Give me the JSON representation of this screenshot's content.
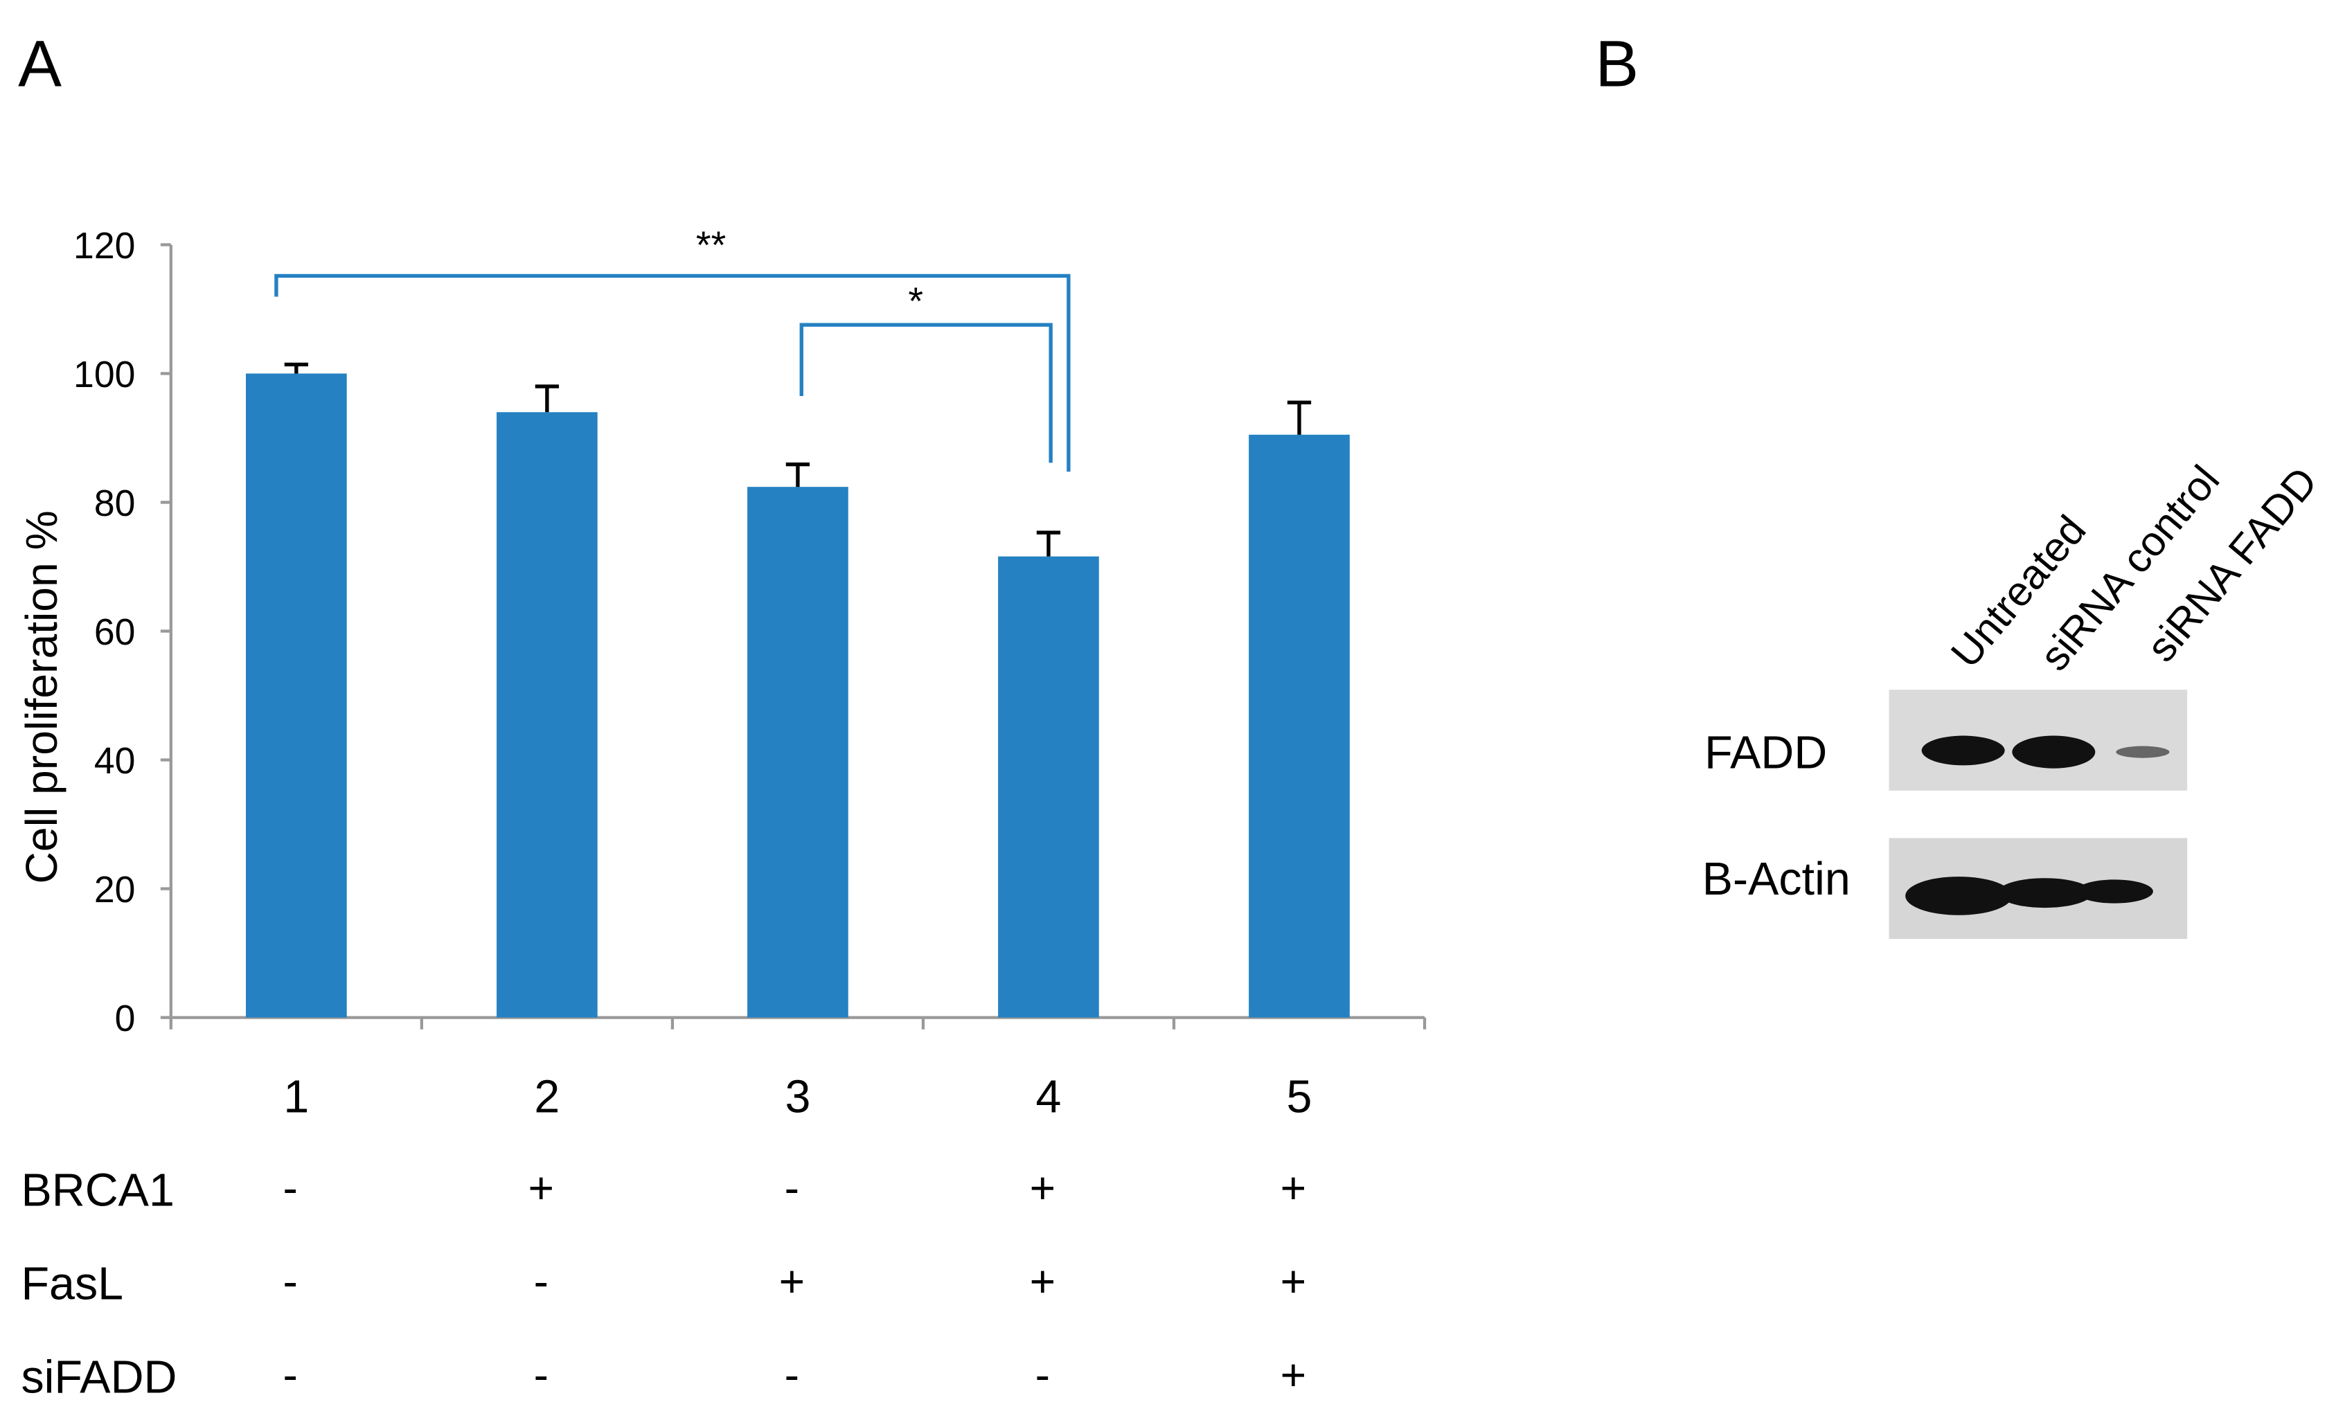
{
  "panels": [
    "A",
    "B"
  ],
  "chart_data": {
    "type": "bar",
    "ylabel": "Cell proliferation %",
    "categories": [
      "1",
      "2",
      "3",
      "4",
      "5"
    ],
    "values": [
      100,
      94,
      82.4,
      71.6,
      90.5
    ],
    "errors": [
      1.4,
      4,
      3.5,
      3.7,
      5
    ],
    "color": "#2581c2",
    "ylim": [
      0,
      120
    ],
    "yticks": [
      0,
      20,
      40,
      60,
      80,
      100,
      120
    ],
    "annotations": [
      "**",
      "*"
    ],
    "conditions": [
      {
        "name": "BRCA1",
        "values": [
          "-",
          "+",
          "-",
          "+",
          "+"
        ]
      },
      {
        "name": "FasL",
        "values": [
          "-",
          "-",
          "+",
          "+",
          "+"
        ]
      },
      {
        "name": "siFADD",
        "values": [
          "-",
          "-",
          "-",
          "-",
          "+"
        ]
      }
    ]
  },
  "blot": {
    "lanes": [
      "Untreated",
      "siRNA control",
      "siRNA FADD"
    ],
    "rows": [
      "FADD",
      "B-Actin"
    ]
  }
}
